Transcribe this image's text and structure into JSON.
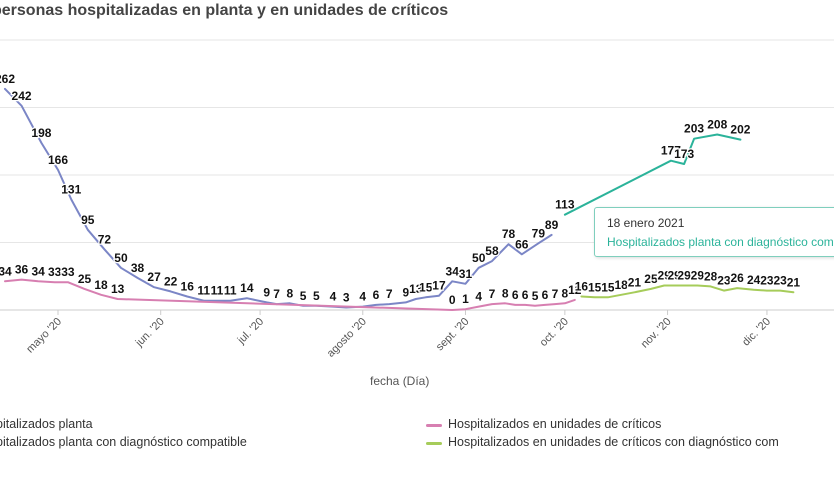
{
  "title": "personas hospitalizadas en planta y en unidades de críticos",
  "tooltip": {
    "date": "18 enero 2021",
    "series": "Hospitalizados planta con diagnóstico compatible"
  },
  "legend": [
    {
      "name": "pitalizados planta",
      "color": "#7b86c6"
    },
    {
      "name": "Hospitalizados en unidades de críticos",
      "color": "#d77fb1"
    },
    {
      "name": "pitalizados planta con diagnóstico compatible",
      "color": "#2bb39a"
    },
    {
      "name": "Hospitalizados en unidades de críticos con diagnóstico com",
      "color": "#a6cc5a"
    }
  ],
  "chart_data": {
    "type": "line",
    "xlabel": "fecha (Día)",
    "ylabel": "",
    "x_ticks": [
      "mayo '20",
      "jun. '20",
      "jul. '20",
      "agosto '20",
      "sept. '20",
      "oct. '20",
      "nov. '20",
      "dic. '20"
    ],
    "ylim": [
      0,
      320
    ],
    "grid": "horizontal",
    "legend_position": "bottom",
    "series": [
      {
        "name": "pitalizados planta",
        "values": [
          {
            "x": "2020-04-15",
            "y": 262
          },
          {
            "x": "2020-04-20",
            "y": 242
          },
          {
            "x": "2020-04-26",
            "y": 198
          },
          {
            "x": "2020-05-01",
            "y": 166
          },
          {
            "x": "2020-05-05",
            "y": 131
          },
          {
            "x": "2020-05-10",
            "y": 95
          },
          {
            "x": "2020-05-15",
            "y": 72
          },
          {
            "x": "2020-05-20",
            "y": 50
          },
          {
            "x": "2020-05-25",
            "y": 38
          },
          {
            "x": "2020-05-30",
            "y": 27
          },
          {
            "x": "2020-06-04",
            "y": 22
          },
          {
            "x": "2020-06-09",
            "y": 16
          },
          {
            "x": "2020-06-14",
            "y": 11
          },
          {
            "x": "2020-06-18",
            "y": 11
          },
          {
            "x": "2020-06-22",
            "y": 11
          },
          {
            "x": "2020-06-27",
            "y": 14
          },
          {
            "x": "2020-07-03",
            "y": 9
          },
          {
            "x": "2020-07-06",
            "y": 7
          },
          {
            "x": "2020-07-10",
            "y": 8
          },
          {
            "x": "2020-07-14",
            "y": 5
          },
          {
            "x": "2020-07-18",
            "y": 5
          },
          {
            "x": "2020-07-23",
            "y": 4
          },
          {
            "x": "2020-07-27",
            "y": 3
          },
          {
            "x": "2020-08-01",
            "y": 4
          },
          {
            "x": "2020-08-05",
            "y": 6
          },
          {
            "x": "2020-08-09",
            "y": 7
          },
          {
            "x": "2020-08-14",
            "y": 9
          },
          {
            "x": "2020-08-17",
            "y": 13
          },
          {
            "x": "2020-08-20",
            "y": 15
          },
          {
            "x": "2020-08-24",
            "y": 17
          },
          {
            "x": "2020-08-28",
            "y": 34
          },
          {
            "x": "2020-09-01",
            "y": 31
          },
          {
            "x": "2020-09-05",
            "y": 50
          },
          {
            "x": "2020-09-09",
            "y": 58
          },
          {
            "x": "2020-09-14",
            "y": 78
          },
          {
            "x": "2020-09-18",
            "y": 66
          },
          {
            "x": "2020-09-23",
            "y": 79
          },
          {
            "x": "2020-09-27",
            "y": 89
          }
        ]
      },
      {
        "name": "Hospitalizados en unidades de críticos",
        "values": [
          {
            "x": "2020-04-15",
            "y": 34
          },
          {
            "x": "2020-04-20",
            "y": 36
          },
          {
            "x": "2020-04-25",
            "y": 34
          },
          {
            "x": "2020-04-30",
            "y": 33
          },
          {
            "x": "2020-05-04",
            "y": 33
          },
          {
            "x": "2020-05-09",
            "y": 25
          },
          {
            "x": "2020-05-14",
            "y": 18
          },
          {
            "x": "2020-05-19",
            "y": 13
          },
          {
            "x": "2020-08-28",
            "y": 0
          },
          {
            "x": "2020-09-01",
            "y": 1
          },
          {
            "x": "2020-09-05",
            "y": 4
          },
          {
            "x": "2020-09-09",
            "y": 7
          },
          {
            "x": "2020-09-13",
            "y": 8
          },
          {
            "x": "2020-09-16",
            "y": 6
          },
          {
            "x": "2020-09-19",
            "y": 6
          },
          {
            "x": "2020-09-22",
            "y": 5
          },
          {
            "x": "2020-09-25",
            "y": 6
          },
          {
            "x": "2020-09-28",
            "y": 7
          },
          {
            "x": "2020-10-01",
            "y": 8
          },
          {
            "x": "2020-10-04",
            "y": 12
          }
        ]
      },
      {
        "name": "pitalizados planta con diagnóstico compatible",
        "values": [
          {
            "x": "2020-10-01",
            "y": 113
          },
          {
            "x": "2020-11-02",
            "y": 177
          },
          {
            "x": "2020-11-06",
            "y": 173
          },
          {
            "x": "2020-11-09",
            "y": 203
          },
          {
            "x": "2020-11-16",
            "y": 208
          },
          {
            "x": "2020-11-23",
            "y": 202
          }
        ]
      },
      {
        "name": "Hospitalizados en unidades de críticos con diagnóstico com",
        "values": [
          {
            "x": "2020-10-06",
            "y": 16
          },
          {
            "x": "2020-10-10",
            "y": 15
          },
          {
            "x": "2020-10-14",
            "y": 15
          },
          {
            "x": "2020-10-18",
            "y": 18
          },
          {
            "x": "2020-10-22",
            "y": 21
          },
          {
            "x": "2020-10-27",
            "y": 25
          },
          {
            "x": "2020-10-31",
            "y": 29
          },
          {
            "x": "2020-11-03",
            "y": 29
          },
          {
            "x": "2020-11-06",
            "y": 29
          },
          {
            "x": "2020-11-10",
            "y": 29
          },
          {
            "x": "2020-11-14",
            "y": 28
          },
          {
            "x": "2020-11-18",
            "y": 23
          },
          {
            "x": "2020-11-22",
            "y": 26
          },
          {
            "x": "2020-11-27",
            "y": 24
          },
          {
            "x": "2020-12-01",
            "y": 23
          },
          {
            "x": "2020-12-05",
            "y": 23
          },
          {
            "x": "2020-12-09",
            "y": 21
          }
        ]
      }
    ]
  }
}
